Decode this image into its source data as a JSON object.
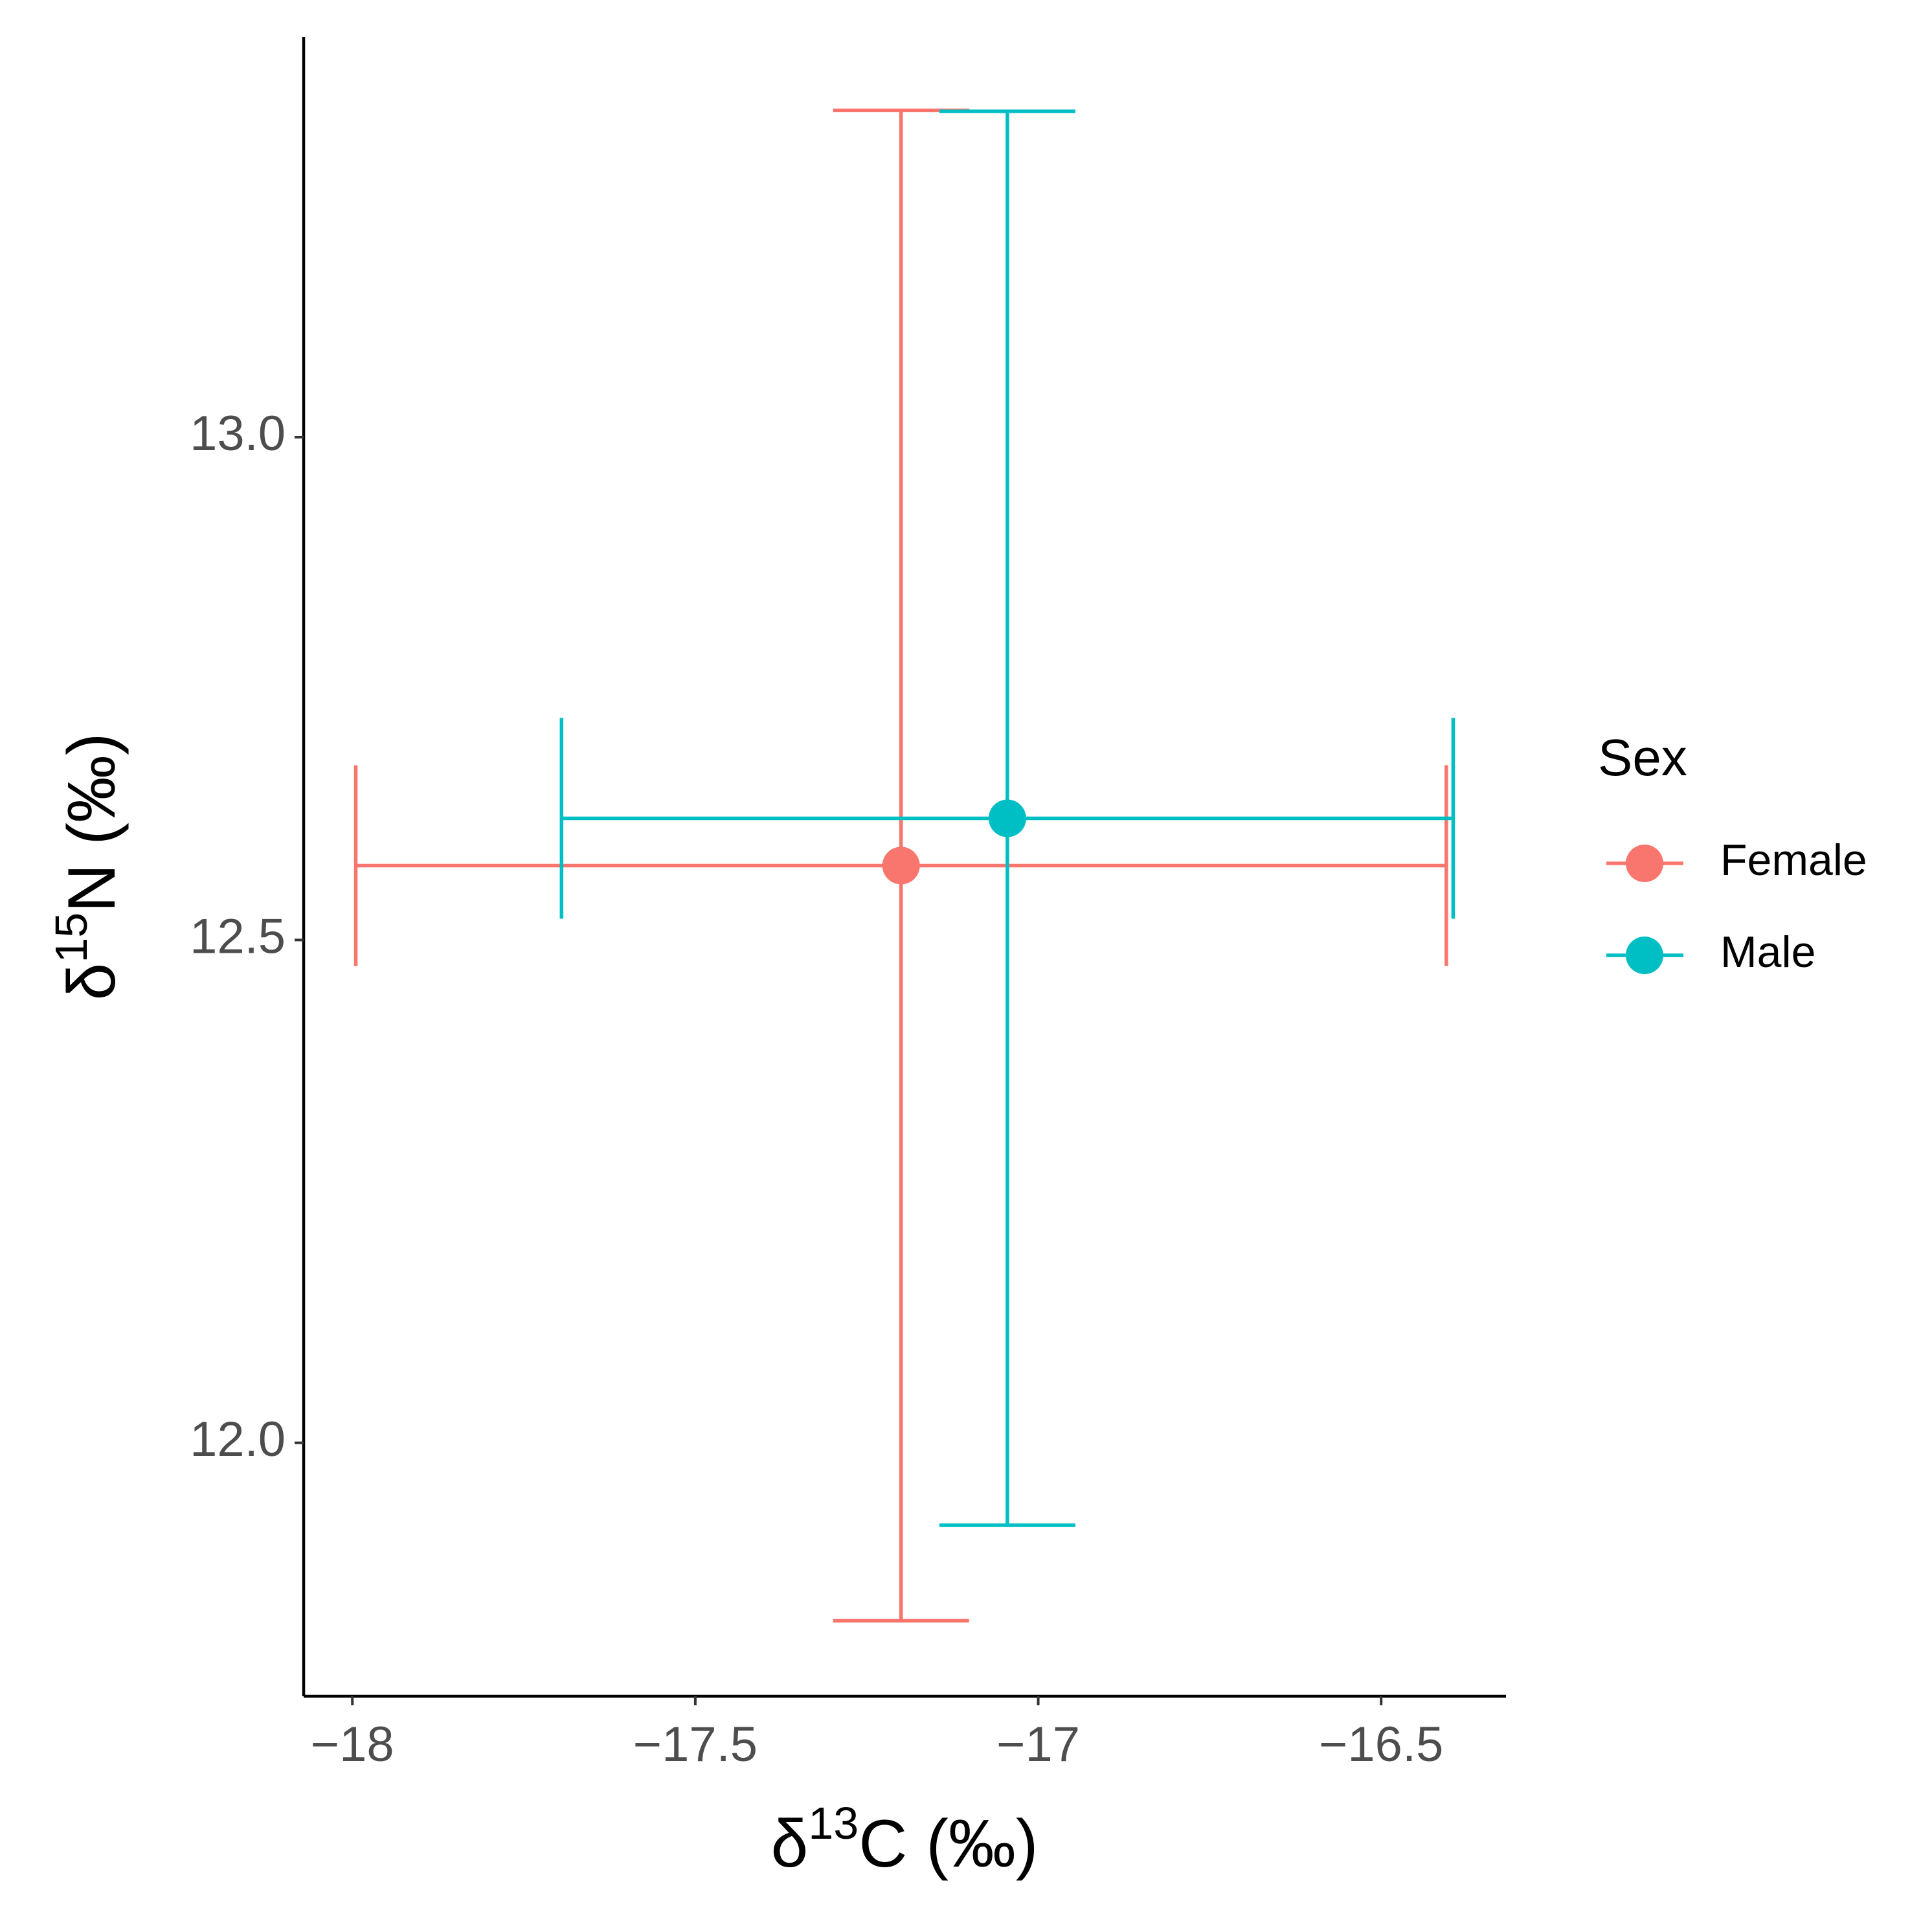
{
  "chart_data": {
    "type": "errorbar-scatter",
    "xlabel": [
      "δ",
      "13",
      "C (‰)"
    ],
    "ylabel": [
      "δ",
      "15",
      "N (‰)"
    ],
    "legend_title": "Sex",
    "legend": "right",
    "xlim": [
      -18.071,
      -16.318
    ],
    "ylim": [
      11.748,
      13.398
    ],
    "xticks": [
      {
        "value": -18,
        "label": "−18"
      },
      {
        "value": -17.5,
        "label": "−17.5"
      },
      {
        "value": -17,
        "label": "−17"
      },
      {
        "value": -16.5,
        "label": "−16.5"
      }
    ],
    "yticks": [
      {
        "value": 12,
        "label": "12.0"
      },
      12.5,
      {
        "value": 13,
        "label": "13.0"
      }
    ],
    "grid": false,
    "series": [
      {
        "name": "Female",
        "color": "#F8766D",
        "x": -17.2,
        "y": 12.574,
        "xerr": 0.795,
        "yerr": 0.751
      },
      {
        "name": "Male",
        "color": "#00BFC4",
        "x": -17.045,
        "y": 12.621,
        "xerr": 0.65,
        "yerr": 0.703
      }
    ]
  }
}
